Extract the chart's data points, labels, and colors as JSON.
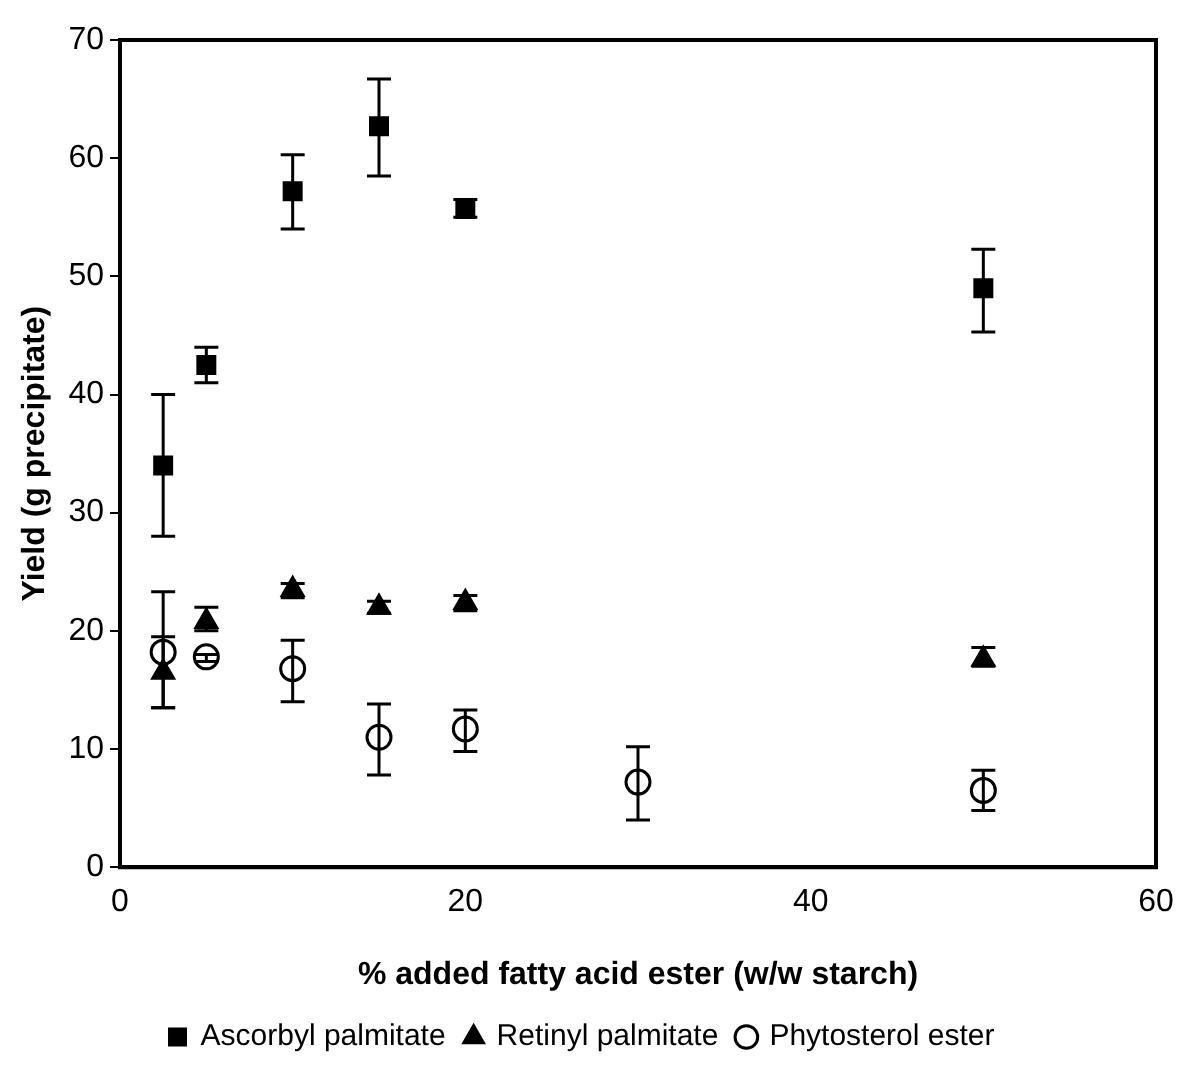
{
  "chart_data": {
    "type": "scatter",
    "xlabel": "% added fatty acid ester (w/w starch)",
    "ylabel": "Yield (g precipitate)",
    "xlim": [
      0,
      60
    ],
    "xticks": [
      0,
      20,
      40,
      60
    ],
    "ylim": [
      0,
      70
    ],
    "yticks": [
      0,
      10,
      20,
      30,
      40,
      50,
      60,
      70
    ],
    "grid": false,
    "legend": "bottom",
    "series": [
      {
        "name": "Ascorbyl palmitate",
        "color": "#000000",
        "marker": "square",
        "x": [
          2.5,
          5,
          10,
          15,
          20,
          50
        ],
        "values": [
          34,
          42.5,
          57.2,
          62.7,
          55.7,
          49
        ],
        "errors": [
          [
            28,
            40
          ],
          [
            41,
            44
          ],
          [
            54,
            60.3
          ],
          [
            58.5,
            66.7
          ],
          [
            55,
            56.5
          ],
          [
            45.3,
            52.3
          ]
        ]
      },
      {
        "name": "Retinyl palmitate",
        "color": "#000000",
        "marker": "triangle",
        "x": [
          2.5,
          5,
          10,
          15,
          20,
          50
        ],
        "values": [
          16.5,
          20.8,
          23.5,
          22,
          22.4,
          17.6
        ],
        "errors": [
          [
            13.5,
            19.5
          ],
          [
            20,
            22
          ],
          [
            22.8,
            24
          ],
          [
            21.5,
            22.5
          ],
          [
            21.7,
            23
          ],
          [
            17,
            18.6
          ]
        ]
      },
      {
        "name": "Phytosterol ester",
        "color": "#000000",
        "marker": "circle",
        "x": [
          2.5,
          5,
          10,
          15,
          20,
          30,
          50
        ],
        "values": [
          18.2,
          17.8,
          16.8,
          11,
          11.7,
          7.2,
          6.5
        ],
        "errors": [
          [
            13.5,
            23.3
          ],
          [
            17.4,
            18
          ],
          [
            14,
            19.2
          ],
          [
            7.8,
            13.8
          ],
          [
            9.8,
            13.3
          ],
          [
            4,
            10.2
          ],
          [
            4.8,
            8.2
          ]
        ]
      }
    ]
  }
}
